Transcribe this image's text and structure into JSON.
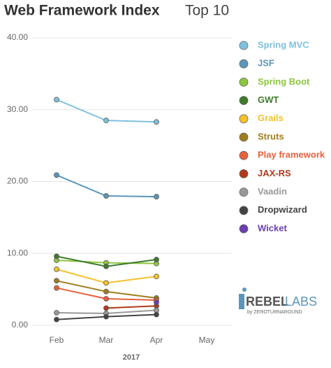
{
  "chart_data": {
    "type": "line",
    "title": "Web Framework Index",
    "subtitle": "Top 10",
    "x_label": "2017",
    "categories": [
      "Feb",
      "Mar",
      "Apr",
      "May"
    ],
    "ylim": [
      0,
      40
    ],
    "yticks": [
      {
        "value": 0,
        "label": "0.00"
      },
      {
        "value": 10,
        "label": "10.00"
      },
      {
        "value": 20,
        "label": "20.00"
      },
      {
        "value": 30,
        "label": "30.00"
      },
      {
        "value": 40,
        "label": "40.00"
      }
    ],
    "grid": true,
    "legend": "right",
    "logo": {
      "main": "REBEL",
      "accent": "LABS",
      "sub": "by ZEROTURNAROUND"
    },
    "series": [
      {
        "name": "Spring MVC",
        "color": "#7fc1dd",
        "values": [
          31.4,
          28.5,
          28.3,
          null
        ]
      },
      {
        "name": "JSF",
        "color": "#5b96b8",
        "values": [
          20.9,
          18.0,
          17.9,
          null
        ]
      },
      {
        "name": "Spring Boot",
        "color": "#8dc63f",
        "values": [
          9.05,
          8.7,
          8.6,
          null
        ]
      },
      {
        "name": "GWT",
        "color": "#3f7a2b",
        "values": [
          9.6,
          8.2,
          9.15,
          null
        ]
      },
      {
        "name": "Grails",
        "color": "#f5c22b",
        "values": [
          7.8,
          5.9,
          6.8,
          null
        ]
      },
      {
        "name": "Struts",
        "color": "#a07d1c",
        "values": [
          6.2,
          4.7,
          3.8,
          null
        ]
      },
      {
        "name": "Play framework",
        "color": "#e8603c",
        "values": [
          5.2,
          3.7,
          3.5,
          null
        ]
      },
      {
        "name": "JAX-RS",
        "color": "#b03a1a",
        "values": [
          null,
          2.4,
          2.7,
          null
        ]
      },
      {
        "name": "Vaadin",
        "color": "#999999",
        "values": [
          1.75,
          1.65,
          2.1,
          null
        ]
      },
      {
        "name": "Dropwizard",
        "color": "#444444",
        "values": [
          0.8,
          1.2,
          1.5,
          null
        ]
      },
      {
        "name": "Wicket",
        "color": "#6a3fb0",
        "values": [
          null,
          null,
          3.2,
          null
        ]
      }
    ]
  }
}
